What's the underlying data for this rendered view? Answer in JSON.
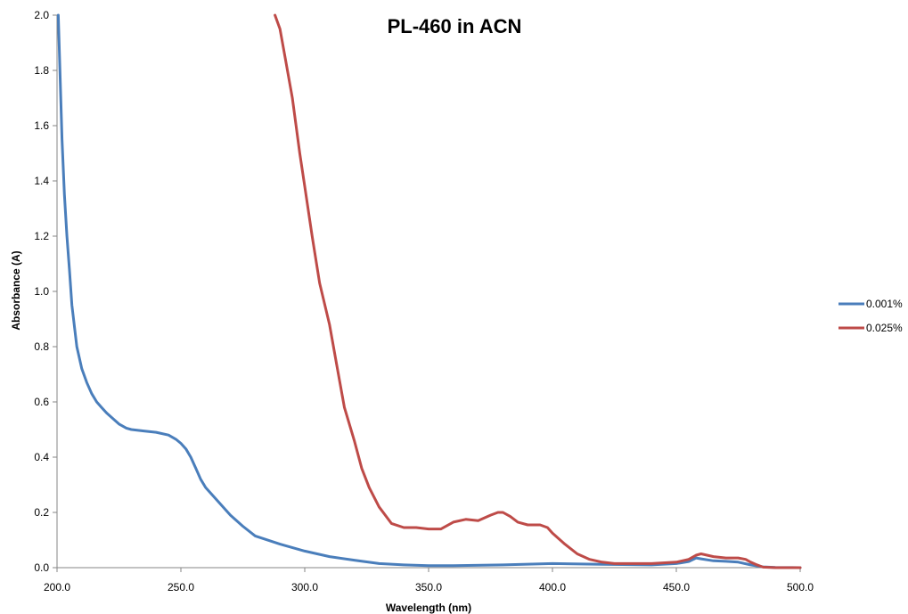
{
  "chart_data": {
    "type": "line",
    "title": "PL-460 in ACN",
    "xlabel": "Wavelength (nm)",
    "ylabel": "Absorbance (A)",
    "xlim": [
      200,
      500
    ],
    "ylim": [
      0,
      2.0
    ],
    "x_ticks": [
      "200.0",
      "250.0",
      "300.0",
      "350.0",
      "400.0",
      "450.0",
      "500.0"
    ],
    "y_ticks": [
      "0.0",
      "0.2",
      "0.4",
      "0.6",
      "0.8",
      "1.0",
      "1.2",
      "1.4",
      "1.6",
      "1.8",
      "2.0"
    ],
    "grid": false,
    "legend": "right",
    "series": [
      {
        "name": "0.001%",
        "color": "#4a7ebb",
        "x": [
          200.5,
          201,
          202,
          203,
          204,
          205,
          206,
          208,
          210,
          212,
          214,
          216,
          218,
          220,
          225,
          228,
          230,
          235,
          240,
          245,
          248,
          250,
          252,
          254,
          256,
          258,
          260,
          265,
          270,
          275,
          280,
          290,
          300,
          310,
          320,
          330,
          340,
          350,
          360,
          380,
          400,
          420,
          440,
          450,
          455,
          458,
          460,
          465,
          470,
          475,
          480,
          485,
          490,
          500
        ],
        "y": [
          2.0,
          1.85,
          1.55,
          1.35,
          1.2,
          1.08,
          0.95,
          0.8,
          0.72,
          0.67,
          0.63,
          0.6,
          0.58,
          0.56,
          0.52,
          0.505,
          0.5,
          0.495,
          0.49,
          0.48,
          0.465,
          0.45,
          0.43,
          0.4,
          0.36,
          0.32,
          0.29,
          0.24,
          0.19,
          0.15,
          0.115,
          0.085,
          0.06,
          0.04,
          0.027,
          0.015,
          0.01,
          0.007,
          0.007,
          0.01,
          0.015,
          0.012,
          0.01,
          0.015,
          0.022,
          0.035,
          0.032,
          0.025,
          0.023,
          0.02,
          0.01,
          0.003,
          0.001,
          0.0
        ]
      },
      {
        "name": "0.025%",
        "color": "#be4b48",
        "x": [
          288,
          290,
          292,
          295,
          298,
          300,
          303,
          306,
          310,
          313,
          316,
          320,
          323,
          326,
          330,
          335,
          340,
          345,
          350,
          355,
          360,
          365,
          370,
          375,
          378,
          380,
          383,
          386,
          390,
          395,
          398,
          400,
          405,
          410,
          415,
          420,
          425,
          430,
          440,
          450,
          455,
          458,
          460,
          465,
          470,
          475,
          478,
          480,
          482,
          485,
          490,
          500
        ],
        "y": [
          2.0,
          1.95,
          1.85,
          1.7,
          1.5,
          1.38,
          1.2,
          1.03,
          0.88,
          0.73,
          0.58,
          0.46,
          0.36,
          0.29,
          0.22,
          0.16,
          0.145,
          0.145,
          0.14,
          0.14,
          0.165,
          0.175,
          0.17,
          0.19,
          0.2,
          0.2,
          0.185,
          0.165,
          0.155,
          0.155,
          0.145,
          0.125,
          0.085,
          0.05,
          0.03,
          0.02,
          0.015,
          0.015,
          0.015,
          0.02,
          0.03,
          0.045,
          0.05,
          0.04,
          0.035,
          0.035,
          0.03,
          0.02,
          0.012,
          0.002,
          0.0,
          0.0
        ]
      }
    ]
  }
}
